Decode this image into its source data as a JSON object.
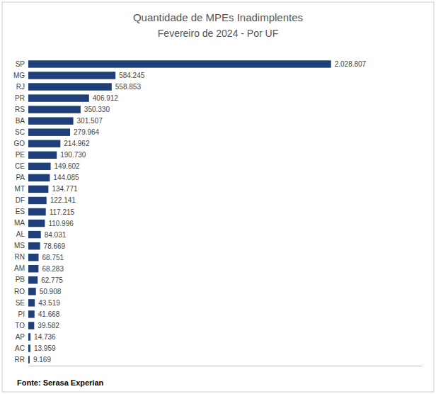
{
  "chart_data": {
    "type": "bar",
    "orientation": "horizontal",
    "title": "Quantidade de MPEs Inadimplentes",
    "subtitle": "Fevereiro de 2024 - Por UF",
    "annotations": [
      "Fonte: Serasa Experian"
    ],
    "categories": [
      "SP",
      "MG",
      "RJ",
      "PR",
      "RS",
      "BA",
      "SC",
      "GO",
      "PE",
      "CE",
      "PA",
      "MT",
      "DF",
      "ES",
      "MA",
      "AL",
      "MS",
      "RN",
      "AM",
      "PB",
      "RO",
      "SE",
      "PI",
      "TO",
      "AP",
      "AC",
      "RR"
    ],
    "values": [
      2028807,
      584245,
      558853,
      406912,
      350330,
      301507,
      279964,
      214962,
      190730,
      149602,
      144085,
      134771,
      122141,
      117215,
      110996,
      84031,
      78669,
      68751,
      68283,
      62775,
      50908,
      43519,
      41668,
      39582,
      14736,
      13959,
      9169
    ],
    "value_labels": [
      "2.028.807",
      "584.245",
      "558.853",
      "406.912",
      "350.330",
      "301.507",
      "279.964",
      "214.962",
      "190.730",
      "149.602",
      "144.085",
      "134.771",
      "122.141",
      "117.215",
      "110.996",
      "84.031",
      "78.669",
      "68.751",
      "68.283",
      "62.775",
      "50.908",
      "43.519",
      "41.668",
      "39.582",
      "14.736",
      "13.959",
      "9.169"
    ],
    "color": "#1F3F7A",
    "xlim": [
      0,
      2637449.1
    ],
    "data_labels": true,
    "tick_labels": "y",
    "grid": false
  }
}
